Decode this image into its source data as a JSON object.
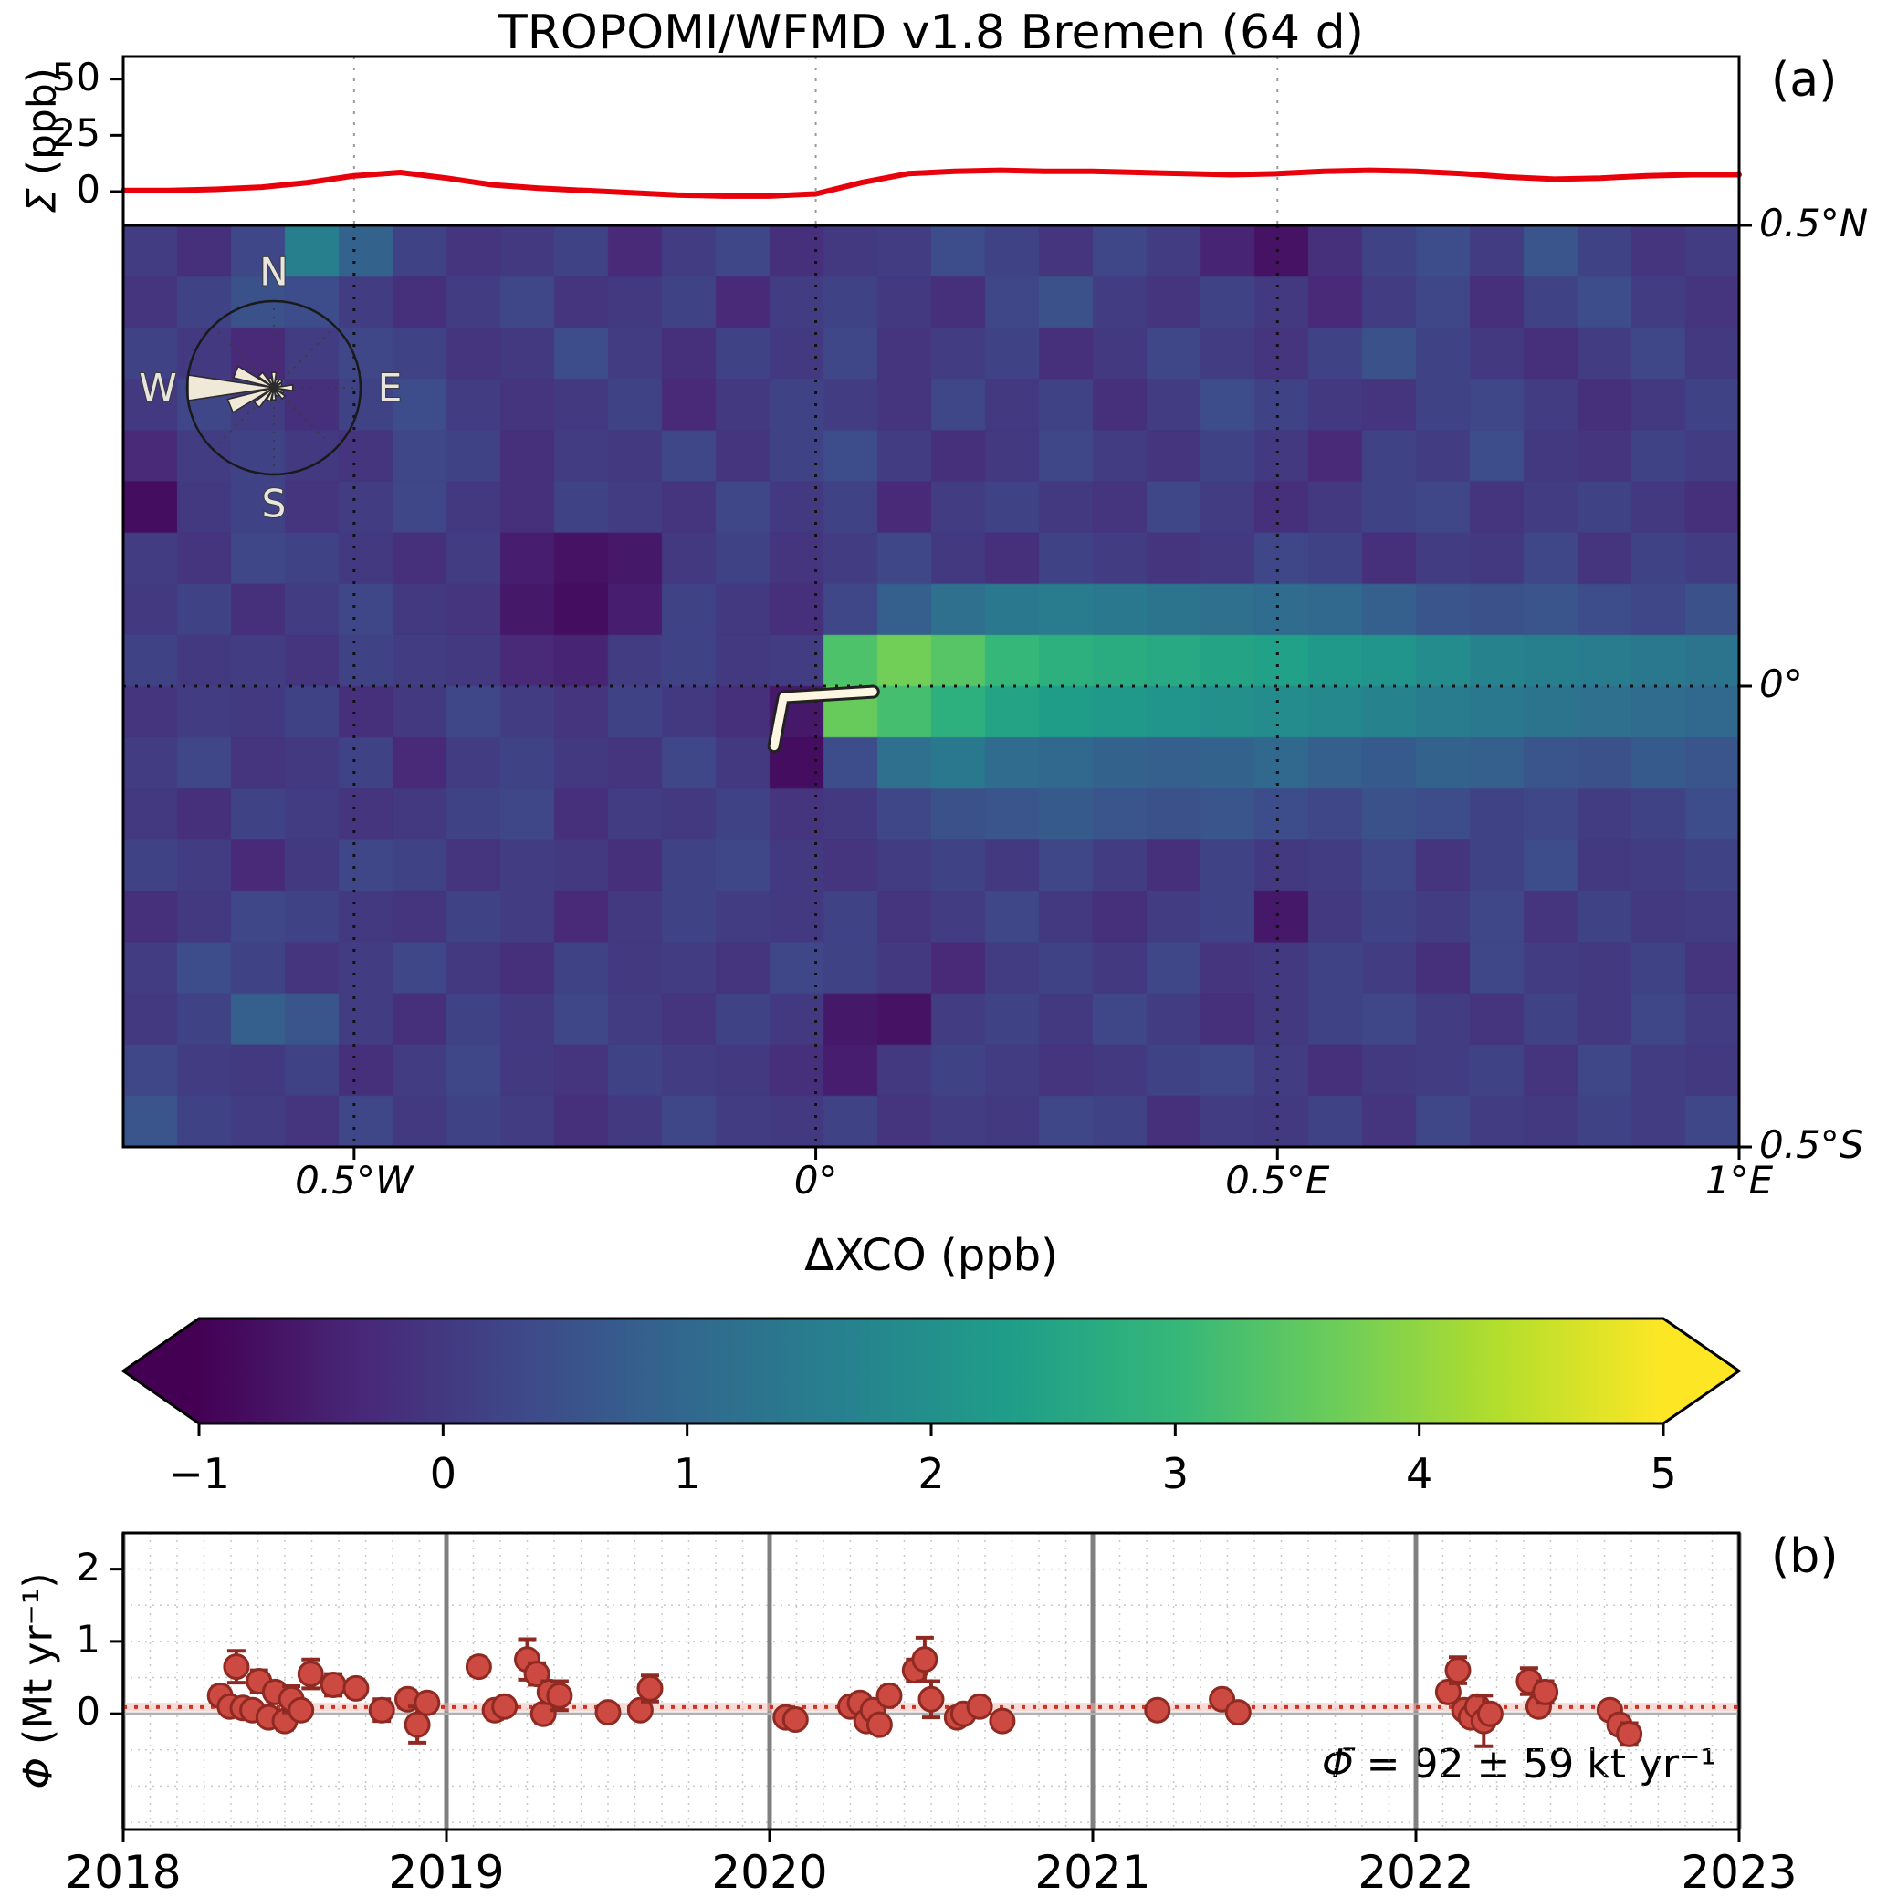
{
  "title": "TROPOMI/WFMD v1.8 Bremen (64 d)",
  "panel_a_label": "(a)",
  "panel_b_label": "(b)",
  "colors": {
    "line_red": "#e8000b",
    "point_fill": "#cd4a42",
    "point_edge": "#8f2a22",
    "mean_line": "#cc3322",
    "band_pink": "#f2b6ad",
    "zero_line": "#b0b0b0",
    "year_line": "#808080",
    "minor_grid": "#c8c8c8",
    "marker_ivory": "#fdf6e3",
    "rose_petal": "#f0e9d8",
    "viridis": [
      "#440154",
      "#482878",
      "#3e4989",
      "#31688e",
      "#26828e",
      "#1f9e89",
      "#35b779",
      "#6dcd59",
      "#b4de2c",
      "#fde725"
    ]
  },
  "chart_data": [
    {
      "type": "line",
      "id": "sigma-longitude-profile",
      "ylabel_symbol": "Σ",
      "ylabel_unit": " (ppb)",
      "yticks": [
        0,
        25,
        50
      ],
      "ylim": [
        -15,
        60
      ],
      "xlim": [
        -0.75,
        1.0
      ],
      "grid_lons": [
        -0.5,
        0,
        0.5
      ],
      "x": [
        -0.75,
        -0.7,
        -0.65,
        -0.6,
        -0.55,
        -0.5,
        -0.45,
        -0.4,
        -0.35,
        -0.3,
        -0.25,
        -0.2,
        -0.15,
        -0.1,
        -0.05,
        0.0,
        0.05,
        0.1,
        0.15,
        0.2,
        0.25,
        0.3,
        0.35,
        0.4,
        0.45,
        0.5,
        0.55,
        0.6,
        0.65,
        0.7,
        0.75,
        0.8,
        0.85,
        0.9,
        0.95,
        1.0
      ],
      "y": [
        0.5,
        0.5,
        1.0,
        2.0,
        4.0,
        7.0,
        8.5,
        6.0,
        3.0,
        1.5,
        0.5,
        -0.5,
        -1.5,
        -2.0,
        -2.0,
        -1.0,
        4.0,
        8.0,
        9.0,
        9.5,
        9.0,
        9.0,
        8.5,
        8.0,
        7.5,
        8.0,
        9.0,
        9.5,
        9.0,
        8.0,
        6.5,
        5.5,
        6.0,
        7.0,
        7.5,
        7.5
      ]
    },
    {
      "type": "heatmap",
      "id": "delta-xco-map",
      "xlim": [
        -0.75,
        1.0
      ],
      "ylim": [
        -0.5,
        0.5
      ],
      "vmin": -1,
      "vmax": 5,
      "xticks": [
        {
          "v": -0.5,
          "label": "0.5°W"
        },
        {
          "v": 0,
          "label": "0°"
        },
        {
          "v": 0.5,
          "label": "0.5°E"
        },
        {
          "v": 1.0,
          "label": "1°E"
        }
      ],
      "yticks": [
        {
          "v": 0.5,
          "label": "0.5°N"
        },
        {
          "v": 0,
          "label": "0°"
        },
        {
          "v": -0.5,
          "label": "0.5°S"
        }
      ],
      "colorbar": {
        "label": "ΔXCO (ppb)",
        "ticks": [
          -1,
          0,
          1,
          2,
          3,
          4,
          5
        ]
      },
      "wind_rose": {
        "labels": [
          "N",
          "E",
          "S",
          "W"
        ],
        "petals": [
          {
            "dir": 0,
            "len": 0.18
          },
          {
            "dir": 22.5,
            "len": 0.1
          },
          {
            "dir": 45,
            "len": 0.12
          },
          {
            "dir": 67.5,
            "len": 0.1
          },
          {
            "dir": 90,
            "len": 0.22
          },
          {
            "dir": 112.5,
            "len": 0.12
          },
          {
            "dir": 135,
            "len": 0.16
          },
          {
            "dir": 157.5,
            "len": 0.1
          },
          {
            "dir": 180,
            "len": 0.14
          },
          {
            "dir": 202.5,
            "len": 0.16
          },
          {
            "dir": 225,
            "len": 0.28
          },
          {
            "dir": 247.5,
            "len": 0.55
          },
          {
            "dir": 270,
            "len": 1.0
          },
          {
            "dir": 292.5,
            "len": 0.48
          },
          {
            "dir": 315,
            "len": 0.22
          },
          {
            "dir": 337.5,
            "len": 0.12
          }
        ]
      },
      "source_marker": {
        "points": [
          [
            -0.045,
            -0.065
          ],
          [
            -0.035,
            -0.012
          ],
          [
            0.062,
            -0.006
          ]
        ]
      },
      "values": [
        [
          0.1,
          -0.2,
          0.3,
          1.6,
          0.9,
          0.2,
          -0.1,
          0.0,
          0.2,
          -0.3,
          0.1,
          0.3,
          -0.2,
          0.0,
          0.1,
          0.4,
          0.2,
          -0.1,
          0.3,
          0.1,
          -0.4,
          -0.7,
          -0.2,
          0.2,
          0.4,
          0.1,
          0.6,
          0.2,
          -0.1,
          0.1
        ],
        [
          -0.1,
          0.2,
          0.5,
          0.4,
          0.1,
          -0.2,
          0.1,
          0.3,
          -0.1,
          0.0,
          0.2,
          -0.3,
          0.1,
          0.2,
          0.0,
          -0.2,
          0.3,
          0.5,
          0.1,
          -0.1,
          0.2,
          0.0,
          -0.3,
          0.1,
          0.3,
          -0.2,
          0.2,
          0.4,
          0.1,
          -0.1
        ],
        [
          0.2,
          0.0,
          -0.3,
          0.1,
          0.3,
          0.2,
          -0.1,
          0.0,
          0.4,
          0.1,
          -0.2,
          0.2,
          0.0,
          0.3,
          -0.1,
          0.1,
          0.2,
          -0.2,
          0.0,
          0.3,
          0.1,
          -0.1,
          0.2,
          0.5,
          0.2,
          0.0,
          -0.2,
          0.1,
          0.3,
          0.0
        ],
        [
          0.0,
          0.3,
          0.1,
          -0.2,
          0.2,
          0.4,
          0.1,
          -0.1,
          0.0,
          0.2,
          -0.3,
          0.0,
          0.2,
          0.1,
          -0.1,
          0.3,
          0.0,
          0.2,
          -0.2,
          0.1,
          0.4,
          0.2,
          0.0,
          -0.1,
          0.2,
          0.3,
          0.1,
          -0.2,
          0.0,
          0.2
        ],
        [
          -0.3,
          0.1,
          0.2,
          0.0,
          -0.1,
          0.3,
          0.2,
          -0.2,
          0.1,
          0.0,
          0.3,
          -0.1,
          0.2,
          0.4,
          0.1,
          -0.2,
          0.0,
          0.3,
          0.1,
          -0.1,
          0.2,
          0.0,
          -0.3,
          0.2,
          0.1,
          0.4,
          0.0,
          -0.1,
          0.2,
          0.1
        ],
        [
          -0.8,
          0.0,
          0.2,
          -0.1,
          0.1,
          0.3,
          0.0,
          -0.2,
          0.2,
          0.1,
          -0.1,
          0.3,
          0.0,
          0.2,
          -0.3,
          0.1,
          0.2,
          0.0,
          -0.1,
          0.3,
          0.1,
          -0.2,
          0.0,
          0.2,
          0.3,
          -0.1,
          0.1,
          0.2,
          0.0,
          -0.2
        ],
        [
          0.1,
          -0.1,
          0.3,
          0.2,
          0.0,
          -0.2,
          0.1,
          -0.5,
          -0.7,
          -0.6,
          0.0,
          0.2,
          -0.1,
          0.1,
          0.3,
          0.0,
          -0.2,
          0.2,
          0.1,
          -0.1,
          0.0,
          0.3,
          0.2,
          -0.2,
          0.1,
          0.0,
          0.3,
          -0.1,
          0.2,
          0.1
        ],
        [
          0.0,
          0.2,
          -0.2,
          0.1,
          0.3,
          0.0,
          -0.1,
          -0.6,
          -0.8,
          -0.5,
          0.2,
          0.0,
          -0.2,
          0.3,
          0.8,
          1.2,
          1.4,
          1.5,
          1.4,
          1.3,
          1.2,
          1.1,
          1.0,
          0.8,
          0.6,
          0.5,
          0.6,
          0.4,
          0.3,
          0.5
        ],
        [
          0.2,
          0.0,
          0.1,
          -0.1,
          0.2,
          0.1,
          0.0,
          -0.3,
          -0.4,
          0.1,
          0.2,
          0.0,
          0.1,
          3.3,
          3.7,
          3.4,
          3.0,
          2.8,
          2.7,
          2.6,
          2.5,
          2.4,
          2.2,
          2.1,
          1.9,
          1.7,
          1.6,
          1.5,
          1.4,
          1.3
        ],
        [
          -0.1,
          0.1,
          0.0,
          0.2,
          -0.2,
          0.0,
          0.3,
          0.1,
          -0.1,
          0.2,
          0.0,
          -0.2,
          -0.6,
          3.6,
          3.2,
          2.8,
          2.5,
          2.3,
          2.2,
          2.1,
          2.0,
          1.9,
          1.8,
          1.7,
          1.5,
          1.4,
          1.3,
          1.2,
          1.1,
          1.0
        ],
        [
          0.1,
          0.3,
          -0.1,
          0.0,
          0.2,
          -0.3,
          0.1,
          0.2,
          0.0,
          -0.1,
          0.3,
          0.0,
          -0.8,
          0.4,
          1.2,
          1.4,
          1.1,
          1.0,
          0.9,
          0.8,
          0.9,
          1.0,
          0.8,
          0.7,
          0.9,
          0.8,
          0.6,
          0.5,
          0.7,
          0.6
        ],
        [
          0.0,
          -0.2,
          0.2,
          0.1,
          -0.1,
          0.0,
          0.2,
          0.3,
          -0.2,
          0.1,
          0.0,
          0.2,
          -0.1,
          0.0,
          0.3,
          0.5,
          0.6,
          0.7,
          0.6,
          0.5,
          0.6,
          0.4,
          0.3,
          0.5,
          0.4,
          0.2,
          0.3,
          0.1,
          0.2,
          0.4
        ],
        [
          0.2,
          0.1,
          -0.3,
          0.0,
          0.3,
          0.2,
          -0.1,
          0.1,
          0.0,
          -0.2,
          0.2,
          0.3,
          0.0,
          -0.1,
          0.1,
          0.2,
          0.0,
          0.3,
          0.1,
          -0.2,
          0.2,
          0.0,
          0.1,
          0.3,
          -0.1,
          0.2,
          0.4,
          0.0,
          0.1,
          0.2
        ],
        [
          -0.2,
          0.0,
          0.3,
          0.2,
          0.0,
          -0.1,
          0.2,
          0.1,
          -0.3,
          0.0,
          0.2,
          0.1,
          0.0,
          0.2,
          -0.1,
          0.1,
          0.3,
          0.0,
          -0.2,
          0.1,
          0.2,
          -0.6,
          0.0,
          0.2,
          0.1,
          0.3,
          -0.1,
          0.2,
          0.0,
          0.1
        ],
        [
          0.1,
          0.4,
          0.2,
          -0.1,
          0.1,
          0.3,
          0.0,
          -0.2,
          0.2,
          0.0,
          0.1,
          -0.1,
          0.3,
          0.2,
          0.0,
          -0.3,
          0.1,
          0.2,
          0.0,
          0.3,
          -0.1,
          0.0,
          0.2,
          0.1,
          -0.2,
          0.3,
          0.1,
          0.0,
          0.2,
          -0.1
        ],
        [
          0.0,
          0.2,
          0.8,
          0.6,
          0.1,
          -0.2,
          0.2,
          0.0,
          0.3,
          0.1,
          -0.1,
          0.2,
          0.0,
          -0.6,
          -0.7,
          0.1,
          0.2,
          0.0,
          0.3,
          0.1,
          -0.2,
          0.0,
          0.2,
          0.3,
          0.1,
          -0.1,
          0.2,
          0.0,
          0.3,
          0.1
        ],
        [
          0.3,
          0.1,
          0.0,
          0.2,
          -0.2,
          0.1,
          0.3,
          0.0,
          -0.1,
          0.2,
          0.1,
          0.0,
          -0.2,
          -0.5,
          0.0,
          0.2,
          0.1,
          -0.1,
          0.0,
          0.2,
          0.3,
          0.1,
          -0.2,
          0.0,
          0.1,
          0.2,
          -0.1,
          0.3,
          0.1,
          0.0
        ],
        [
          0.6,
          0.2,
          0.1,
          -0.1,
          0.3,
          0.0,
          0.2,
          0.1,
          -0.2,
          0.0,
          0.3,
          0.1,
          0.0,
          0.2,
          -0.1,
          0.1,
          0.0,
          0.3,
          0.2,
          -0.2,
          0.1,
          0.0,
          0.2,
          -0.1,
          0.3,
          0.1,
          0.0,
          0.2,
          0.1,
          0.3
        ]
      ]
    },
    {
      "type": "scatter",
      "id": "flux-time-series",
      "ylabel_symbol": "Φ",
      "ylabel_unit": " (Mt yr⁻¹)",
      "yticks": [
        0,
        1,
        2
      ],
      "ylim": [
        -1.6,
        2.5
      ],
      "xticks": [
        2018,
        2019,
        2020,
        2021,
        2022,
        2023
      ],
      "xlim": [
        2018,
        2023
      ],
      "mean_value_kt": 92,
      "mean_uncertainty_kt": 59,
      "mean_line_mt": 0.092,
      "annotation_symbol": "Φ̄",
      "annotation_rest": " = 92 ± 59 kt yr⁻¹",
      "point_format": [
        "year",
        "flux_Mt_per_yr",
        "error_Mt_per_yr"
      ],
      "points": [
        [
          2018.3,
          0.25,
          0.12
        ],
        [
          2018.33,
          0.1,
          0.1
        ],
        [
          2018.35,
          0.65,
          0.22
        ],
        [
          2018.37,
          0.08,
          0.08
        ],
        [
          2018.4,
          0.05,
          0.08
        ],
        [
          2018.42,
          0.45,
          0.15
        ],
        [
          2018.45,
          -0.05,
          0.1
        ],
        [
          2018.47,
          0.3,
          0.12
        ],
        [
          2018.5,
          -0.1,
          0.12
        ],
        [
          2018.52,
          0.2,
          0.18
        ],
        [
          2018.55,
          0.05,
          0.1
        ],
        [
          2018.58,
          0.55,
          0.2
        ],
        [
          2018.65,
          0.4,
          0.15
        ],
        [
          2018.72,
          0.35,
          0.12
        ],
        [
          2018.8,
          0.05,
          0.15
        ],
        [
          2018.88,
          0.2,
          0.12
        ],
        [
          2018.91,
          -0.15,
          0.25
        ],
        [
          2018.94,
          0.15,
          0.12
        ],
        [
          2019.1,
          0.65,
          0.12
        ],
        [
          2019.15,
          0.05,
          0.12
        ],
        [
          2019.18,
          0.1,
          0.1
        ],
        [
          2019.25,
          0.75,
          0.28
        ],
        [
          2019.28,
          0.55,
          0.15
        ],
        [
          2019.3,
          0.0,
          0.12
        ],
        [
          2019.32,
          0.3,
          0.15
        ],
        [
          2019.35,
          0.25,
          0.2
        ],
        [
          2019.5,
          0.02,
          0.08
        ],
        [
          2019.6,
          0.05,
          0.1
        ],
        [
          2019.63,
          0.35,
          0.18
        ],
        [
          2020.05,
          -0.05,
          0.08
        ],
        [
          2020.08,
          -0.08,
          0.06
        ],
        [
          2020.25,
          0.1,
          0.1
        ],
        [
          2020.28,
          0.15,
          0.12
        ],
        [
          2020.3,
          -0.1,
          0.1
        ],
        [
          2020.32,
          0.05,
          0.1
        ],
        [
          2020.34,
          -0.15,
          0.12
        ],
        [
          2020.37,
          0.25,
          0.12
        ],
        [
          2020.45,
          0.6,
          0.15
        ],
        [
          2020.48,
          0.75,
          0.3
        ],
        [
          2020.5,
          0.2,
          0.25
        ],
        [
          2020.58,
          -0.05,
          0.1
        ],
        [
          2020.6,
          0.0,
          0.08
        ],
        [
          2020.65,
          0.1,
          0.1
        ],
        [
          2020.72,
          -0.1,
          0.1
        ],
        [
          2021.2,
          0.05,
          0.08
        ],
        [
          2021.4,
          0.2,
          0.1
        ],
        [
          2021.45,
          0.02,
          0.08
        ],
        [
          2022.1,
          0.3,
          0.12
        ],
        [
          2022.13,
          0.6,
          0.18
        ],
        [
          2022.15,
          0.05,
          0.1
        ],
        [
          2022.17,
          -0.05,
          0.12
        ],
        [
          2022.19,
          0.1,
          0.1
        ],
        [
          2022.21,
          -0.1,
          0.35
        ],
        [
          2022.23,
          0.0,
          0.1
        ],
        [
          2022.35,
          0.45,
          0.18
        ],
        [
          2022.38,
          0.1,
          0.12
        ],
        [
          2022.4,
          0.3,
          0.15
        ],
        [
          2022.6,
          0.05,
          0.1
        ],
        [
          2022.63,
          -0.15,
          0.12
        ],
        [
          2022.66,
          -0.28,
          0.15
        ]
      ]
    }
  ]
}
